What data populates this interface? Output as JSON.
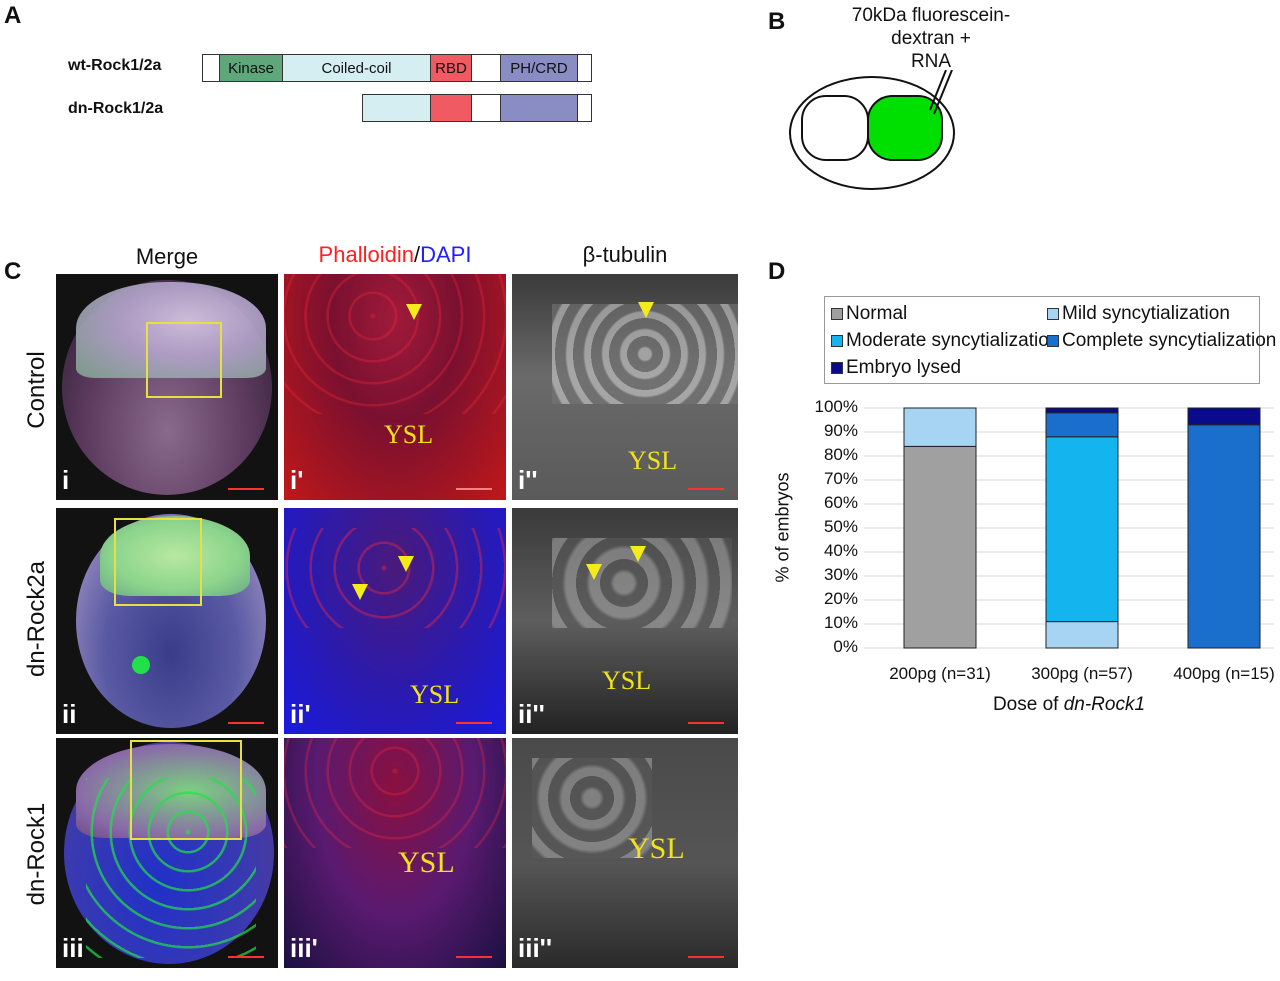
{
  "panels": {
    "A": "A",
    "B": "B",
    "C": "C",
    "D": "D"
  },
  "panel_a": {
    "constructs": [
      {
        "label": "wt-Rock1/2a"
      },
      {
        "label": "dn-Rock1/2a"
      }
    ],
    "domains": {
      "kinase": {
        "label": "Kinase",
        "color": "#5fa67a"
      },
      "coiled_coil": {
        "label": "Coiled-coil",
        "color": "#d4eef2"
      },
      "rbd": {
        "label": "RBD",
        "color": "#ef5a63"
      },
      "ph_crd": {
        "label": "PH/CRD",
        "color": "#8a8cc4"
      }
    }
  },
  "panel_b": {
    "annotation_line1": "70kDa fluorescein-",
    "annotation_line2": "dextran +",
    "annotation_line3": "RNA",
    "injected_color": "#00e000"
  },
  "panel_c": {
    "column_headers": {
      "merge": "Merge",
      "phalloidin": "Phalloidin",
      "slash": "/",
      "dapi": "DAPI",
      "tubulin": "β-tubulin"
    },
    "rows": [
      {
        "label": "Control",
        "sublabels": [
          "i",
          "i'",
          "i''"
        ]
      },
      {
        "label": "dn-Rock2a",
        "sublabels": [
          "ii",
          "ii'",
          "ii''"
        ]
      },
      {
        "label": "dn-Rock1",
        "sublabels": [
          "iii",
          "iii'",
          "iii''"
        ]
      }
    ],
    "ysl_label": "YSL",
    "colors": {
      "phalloidin": "#ff2020",
      "dapi": "#2020ff",
      "arrowhead": "#f4ec1a",
      "ysl_text": "#f2e21b"
    }
  },
  "chart_data": {
    "type": "bar",
    "stacked": true,
    "categories": [
      "200pg (n=31)",
      "300pg (n=57)",
      "400pg (n=15)"
    ],
    "xlabel_prefix": "Dose of ",
    "xlabel_italic": "dn-Rock1",
    "ylabel": "% of embryos",
    "ylim": [
      0,
      100
    ],
    "yticks": [
      "0%",
      "10%",
      "20%",
      "30%",
      "40%",
      "50%",
      "60%",
      "70%",
      "80%",
      "90%",
      "100%"
    ],
    "grid": true,
    "legend_position": "top",
    "series": [
      {
        "name": "Normal",
        "color": "#a0a0a0",
        "values": [
          84,
          0,
          0
        ]
      },
      {
        "name": "Mild syncytialization",
        "color": "#a6d4f2",
        "values": [
          16,
          11,
          0
        ]
      },
      {
        "name": "Moderate syncytialization",
        "color": "#14b4ee",
        "values": [
          0,
          77,
          0
        ]
      },
      {
        "name": "Complete syncytialization",
        "color": "#1a6fcc",
        "values": [
          0,
          10,
          93
        ]
      },
      {
        "name": "Embryo lysed",
        "color": "#0a0a8c",
        "values": [
          0,
          2,
          7
        ]
      }
    ]
  }
}
